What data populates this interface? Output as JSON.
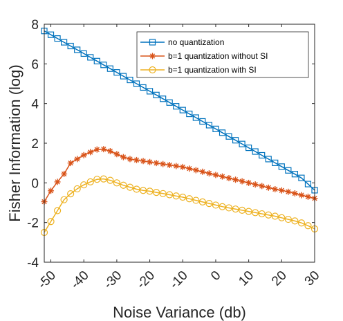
{
  "chart_data": {
    "type": "line",
    "title": "",
    "xlabel": "Noise Variance (db)",
    "ylabel": "Fisher Information (log)",
    "xlim": [
      -52,
      30
    ],
    "ylim": [
      -4,
      8
    ],
    "xticks": [
      -50,
      -40,
      -30,
      -20,
      -10,
      0,
      10,
      20,
      30
    ],
    "xtick_labels": [
      "-50",
      "-40",
      "-30",
      "-20",
      "-10",
      "0",
      "10",
      "20",
      "30"
    ],
    "yticks": [
      -4,
      -2,
      0,
      2,
      4,
      6,
      8
    ],
    "ytick_labels": [
      "-4",
      "-2",
      "0",
      "2",
      "4",
      "6",
      "8"
    ],
    "grid": false,
    "legend_position": "top-right",
    "x": [
      -52,
      -50,
      -48,
      -46,
      -44,
      -42,
      -40,
      -38,
      -36,
      -34,
      -32,
      -30,
      -28,
      -26,
      -24,
      -22,
      -20,
      -18,
      -16,
      -14,
      -12,
      -10,
      -8,
      -6,
      -4,
      -2,
      0,
      2,
      4,
      6,
      8,
      10,
      12,
      14,
      16,
      18,
      20,
      22,
      24,
      26,
      28,
      30
    ],
    "series": [
      {
        "name": "no quantization",
        "color": "#0072bd",
        "marker": "square",
        "values": [
          7.66,
          7.47,
          7.28,
          7.09,
          6.9,
          6.71,
          6.52,
          6.33,
          6.14,
          5.95,
          5.76,
          5.57,
          5.38,
          5.19,
          5.0,
          4.81,
          4.62,
          4.43,
          4.24,
          4.05,
          3.86,
          3.67,
          3.48,
          3.29,
          3.1,
          2.91,
          2.72,
          2.53,
          2.34,
          2.15,
          1.96,
          1.77,
          1.58,
          1.39,
          1.2,
          1.01,
          0.82,
          0.63,
          0.44,
          0.25,
          -0.06,
          -0.37
        ]
      },
      {
        "name": "b=1 quantization without SI",
        "color": "#d95319",
        "marker": "asterisk",
        "values": [
          -0.95,
          -0.4,
          0.05,
          0.45,
          1.0,
          1.2,
          1.4,
          1.55,
          1.68,
          1.7,
          1.6,
          1.45,
          1.3,
          1.2,
          1.15,
          1.1,
          1.05,
          1.0,
          0.95,
          0.9,
          0.85,
          0.8,
          0.72,
          0.64,
          0.56,
          0.48,
          0.4,
          0.32,
          0.24,
          0.16,
          0.08,
          0.0,
          -0.08,
          -0.16,
          -0.24,
          -0.32,
          -0.38,
          -0.45,
          -0.53,
          -0.62,
          -0.7,
          -0.78
        ]
      },
      {
        "name": "b=1 quantization with SI",
        "color": "#edb120",
        "marker": "circle",
        "values": [
          -2.5,
          -1.95,
          -1.4,
          -0.85,
          -0.55,
          -0.3,
          -0.1,
          0.05,
          0.18,
          0.2,
          0.13,
          0.0,
          -0.12,
          -0.22,
          -0.32,
          -0.38,
          -0.42,
          -0.48,
          -0.54,
          -0.6,
          -0.66,
          -0.72,
          -0.8,
          -0.88,
          -0.96,
          -1.04,
          -1.12,
          -1.2,
          -1.26,
          -1.32,
          -1.38,
          -1.44,
          -1.5,
          -1.56,
          -1.62,
          -1.68,
          -1.76,
          -1.84,
          -1.92,
          -2.02,
          -2.16,
          -2.32
        ]
      }
    ]
  }
}
